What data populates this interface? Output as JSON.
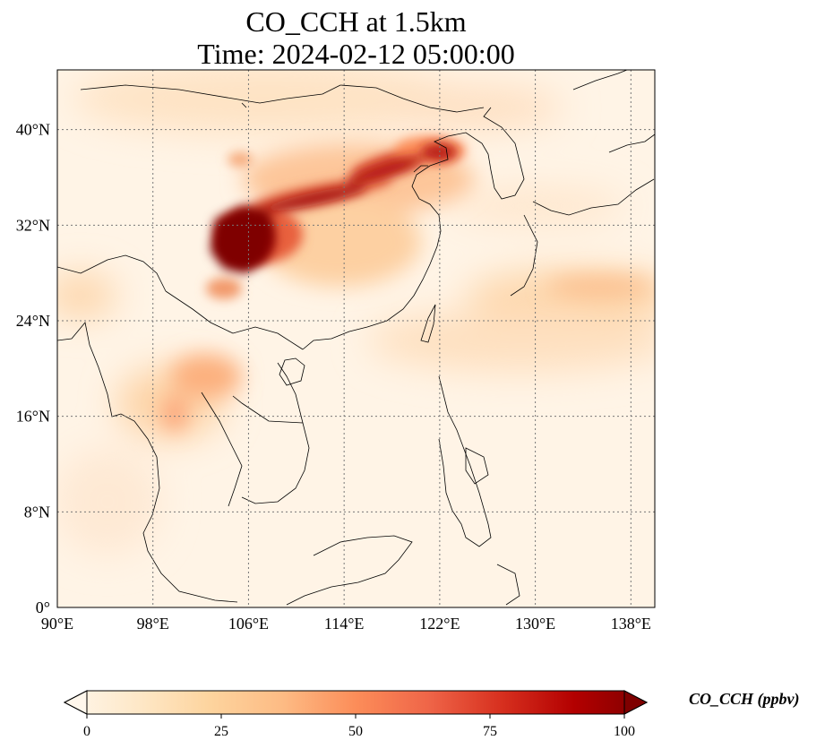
{
  "title_line1": "CO_CCH at 1.5km",
  "title_line2": "Time: 2024-02-12 05:00:00",
  "map": {
    "lon_range": [
      90,
      140
    ],
    "lat_range": [
      0,
      45
    ],
    "lon_ticks": [
      "90°E",
      "98°E",
      "106°E",
      "114°E",
      "122°E",
      "130°E",
      "138°E"
    ],
    "lat_ticks": [
      "0°",
      "8°N",
      "16°N",
      "24°N",
      "32°N",
      "40°N"
    ],
    "gridlines": true,
    "coastlines": true,
    "colormap": "OrRd",
    "colors": [
      "#fff7ec",
      "#fee8c8",
      "#fdd49e",
      "#fdbb84",
      "#fc8d59",
      "#ef6548",
      "#d7301f",
      "#b30000",
      "#7f0000"
    ]
  },
  "colorbar": {
    "title": "CO_CCH (ppbv)",
    "min": 0,
    "max": 100,
    "extend": "both",
    "tick_labels": [
      "0",
      "25",
      "50",
      "75",
      "100"
    ]
  }
}
